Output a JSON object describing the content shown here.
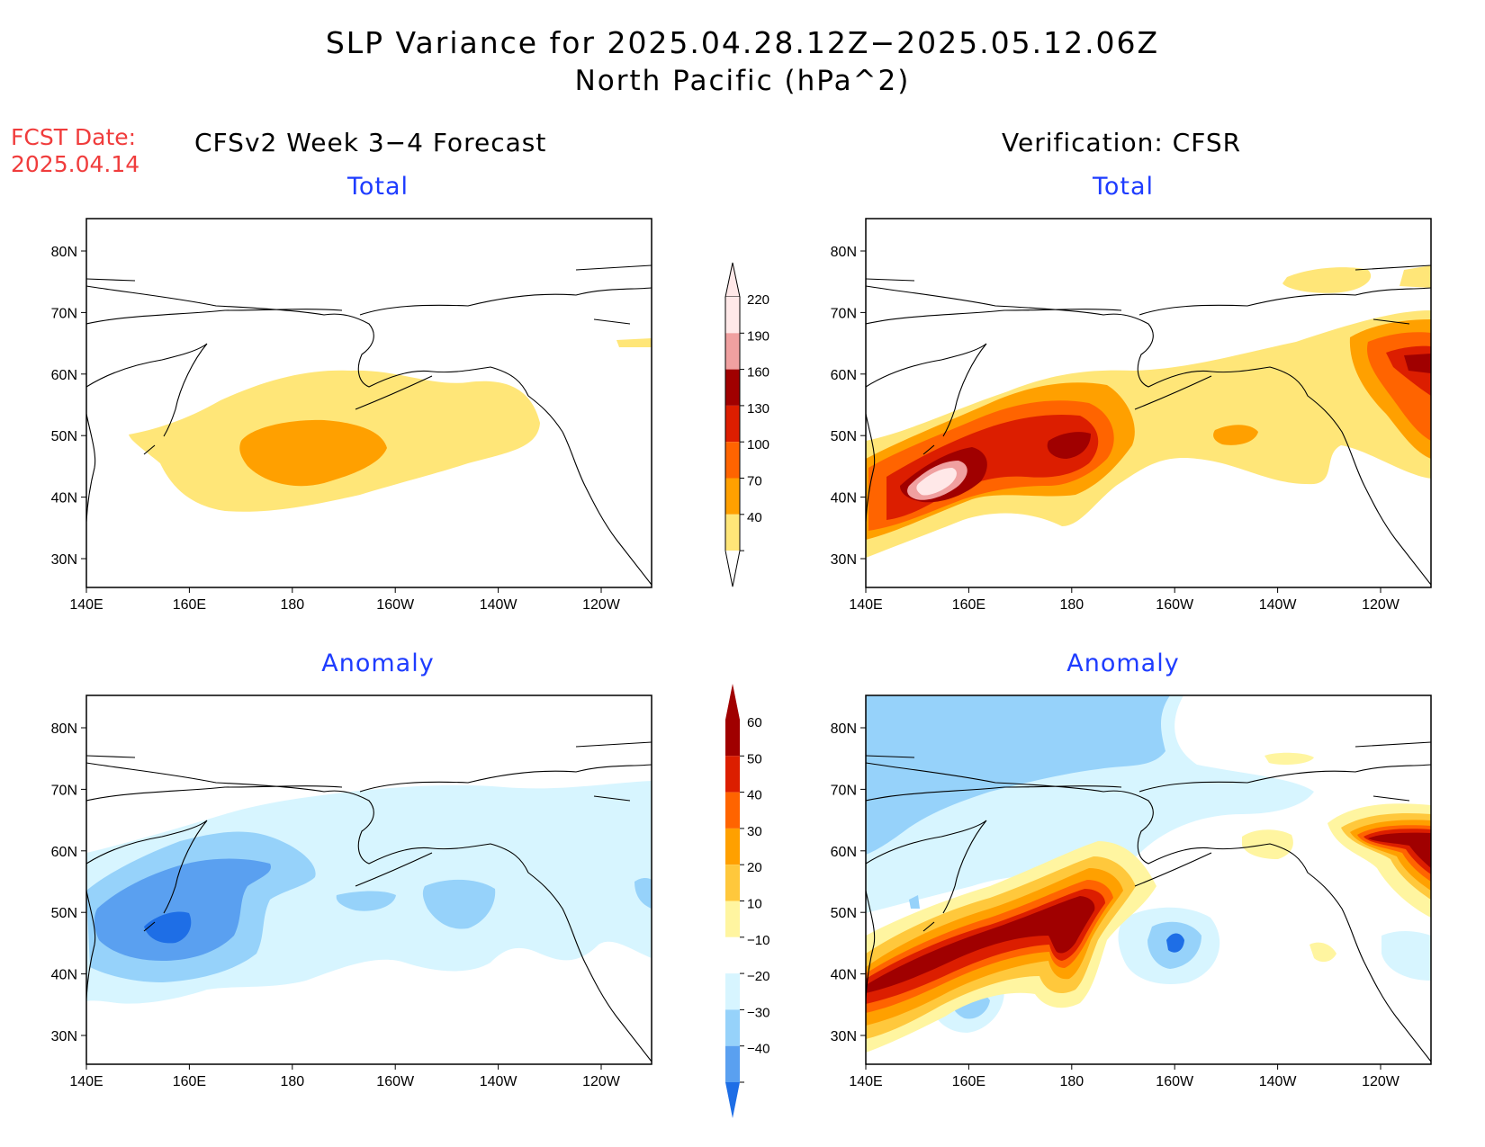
{
  "header": {
    "title_line1": "SLP Variance for 2025.04.28.12Z−2025.05.12.06Z",
    "title_line2": "North Pacific (hPa^2)",
    "fcst_line1": "FCST Date:",
    "fcst_line2": "2025.04.14",
    "left_column": "CFSv2 Week 3−4 Forecast",
    "right_column": "Verification: CFSR"
  },
  "colors": {
    "subtitle": "#1e3cff",
    "fcst_date": "#f03c3c"
  },
  "panels": [
    {
      "id": "forecast-total",
      "subtitle": "Total"
    },
    {
      "id": "verification-total",
      "subtitle": "Total"
    },
    {
      "id": "forecast-anomaly",
      "subtitle": "Anomaly"
    },
    {
      "id": "verification-anomaly",
      "subtitle": "Anomaly"
    }
  ],
  "axes": {
    "lon_labels": [
      "140E",
      "160E",
      "180",
      "160W",
      "140W",
      "120W"
    ],
    "lat_labels": [
      "80N",
      "70N",
      "60N",
      "50N",
      "40N",
      "30N"
    ]
  },
  "colorbars": {
    "total": {
      "labels": [
        "220",
        "190",
        "160",
        "130",
        "100",
        "70",
        "40"
      ],
      "colors": [
        "#ffe8e8",
        "#f0a0a0",
        "#a00000",
        "#dc1e00",
        "#ff6400",
        "#ffa000",
        "#ffe678"
      ]
    },
    "anomaly": {
      "labels": [
        "60",
        "50",
        "40",
        "30",
        "20",
        "10",
        "−10",
        "−20",
        "−30",
        "−40"
      ],
      "colors": [
        "#a00000",
        "#dc1e00",
        "#ff6400",
        "#ffa000",
        "#ffc83c",
        "#fff5a0",
        "#ffffff",
        "#d7f5ff",
        "#96d2fa",
        "#5aa0f0",
        "#1e6ee6"
      ]
    }
  }
}
